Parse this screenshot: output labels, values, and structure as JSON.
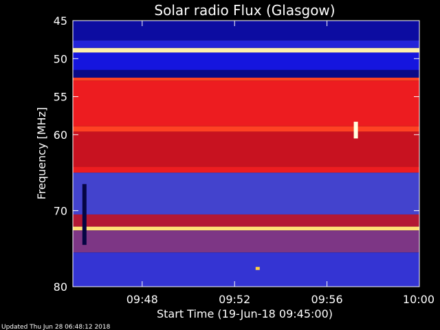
{
  "chart_data": {
    "type": "heatmap",
    "title": "Solar radio Flux (Glasgow)",
    "xlabel": "Start Time (19-Jun-18 09:45:00)",
    "ylabel": "Frequency [MHz]",
    "x_range": [
      "09:45",
      "10:00"
    ],
    "y_range_mhz": [
      45,
      80
    ],
    "y_ticks": [
      "45",
      "50",
      "55",
      "60",
      "70",
      "80"
    ],
    "x_ticks": [
      "09:48",
      "09:52",
      "09:56",
      "10:00"
    ],
    "colorscale": [
      "#000000",
      "#1010e0",
      "#5050c8",
      "#c01020",
      "#ff2020",
      "#ffcc30",
      "#ffffe0"
    ],
    "bands": [
      {
        "from_mhz": 45.0,
        "to_mhz": 47.6,
        "level": 0.12
      },
      {
        "from_mhz": 47.6,
        "to_mhz": 48.6,
        "level": 0.22
      },
      {
        "from_mhz": 48.6,
        "to_mhz": 49.2,
        "level": 0.95
      },
      {
        "from_mhz": 49.2,
        "to_mhz": 51.5,
        "level": 0.18
      },
      {
        "from_mhz": 51.5,
        "to_mhz": 52.5,
        "level": 0.1
      },
      {
        "from_mhz": 52.5,
        "to_mhz": 52.9,
        "level": 0.7
      },
      {
        "from_mhz": 52.9,
        "to_mhz": 58.9,
        "level": 0.62
      },
      {
        "from_mhz": 58.9,
        "to_mhz": 59.6,
        "level": 0.7
      },
      {
        "from_mhz": 59.6,
        "to_mhz": 64.2,
        "level": 0.52
      },
      {
        "from_mhz": 64.2,
        "to_mhz": 65.0,
        "level": 0.62
      },
      {
        "from_mhz": 65.0,
        "to_mhz": 70.5,
        "level": 0.3
      },
      {
        "from_mhz": 70.5,
        "to_mhz": 72.1,
        "level": 0.48
      },
      {
        "from_mhz": 72.1,
        "to_mhz": 72.6,
        "level": 0.9
      },
      {
        "from_mhz": 72.6,
        "to_mhz": 75.5,
        "level": 0.4
      },
      {
        "from_mhz": 75.5,
        "to_mhz": 80.0,
        "level": 0.26
      }
    ],
    "bursts": [
      {
        "time": "09:57:15",
        "from_mhz": 58.3,
        "to_mhz": 60.5,
        "level": 1.0
      },
      {
        "time": "09:45:30",
        "from_mhz": 66.5,
        "to_mhz": 74.5,
        "level": 0.05
      },
      {
        "time": "09:53:00",
        "from_mhz": 77.4,
        "to_mhz": 77.8,
        "level": 0.85
      }
    ]
  },
  "footer": {
    "updated": "Updated Thu Jun 28 06:48:12 2018"
  }
}
